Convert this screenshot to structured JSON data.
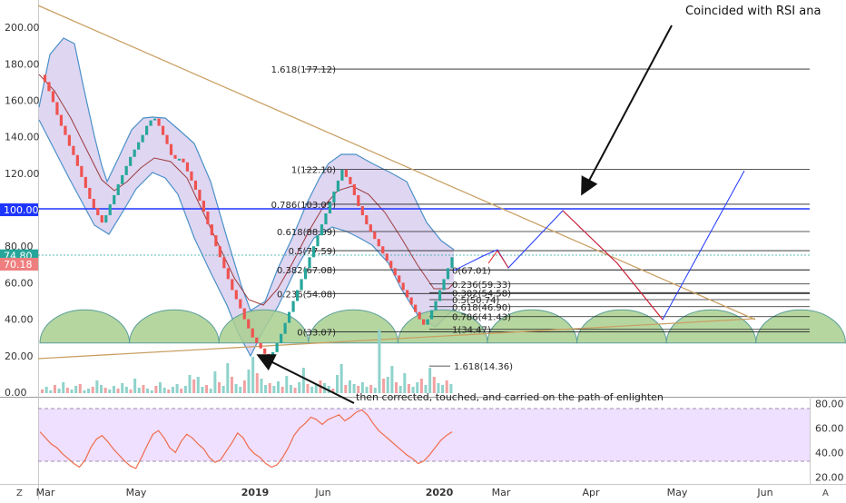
{
  "annotation_text": "Coincided with RSI ana",
  "bottom_note": "then corrected, touched, and carried on the path of enlighten",
  "bottom_bar": {
    "left_button": "Z",
    "right_button": "A"
  },
  "colors": {
    "candle_up": "#26a69a",
    "candle_down": "#ef5350",
    "bb_band": "#4a90c8",
    "bb_fill": "#d9cff0",
    "bb_mid": "#9c3c3c",
    "trendline": "#c9a064",
    "level_blue": "#1e35ff",
    "rsi_line": "#ef6c4c",
    "rsi_fill": "#efe0ff",
    "cycle_fill": "#a9cf8f",
    "cycle_stroke": "#5a9f9a",
    "path_blue": "#1e35ff",
    "path_red": "#e01f1f"
  },
  "chart_data": [
    {
      "type": "candlestick",
      "title": "",
      "y_axis": {
        "ticks": [
          "200.00",
          "180.00",
          "160.00",
          "140.00",
          "120.00",
          "100.00",
          "80.00",
          "60.00",
          "40.00",
          "20.00",
          "0.00"
        ],
        "ylim": [
          0,
          210
        ]
      },
      "x_axis": {
        "ticks": [
          "Mar",
          "May",
          "2019",
          "Jun",
          "2020",
          "Mar",
          "Apr",
          "May",
          "Jun"
        ]
      },
      "price_labels": [
        {
          "text": "100.00",
          "value": 100,
          "bg": "#1e35ff"
        },
        {
          "text": "74.80",
          "value": 74.8,
          "bg": "#26a69a"
        },
        {
          "text": "70.18",
          "value": 70.18,
          "bg": "#ef7f7f"
        }
      ],
      "fib_levels": [
        {
          "label": "1.618(177.12)",
          "value": 177.12
        },
        {
          "label": "1(122.10)",
          "value": 122.1
        },
        {
          "label": "0.786(103.05)",
          "value": 103.05
        },
        {
          "label": "0.618(88.09)",
          "value": 88.09
        },
        {
          "label": "0.5(77.59)",
          "value": 77.59
        },
        {
          "label": "0.382(67.08)",
          "value": 67.08
        },
        {
          "label": "0.236(54.08)",
          "value": 54.08
        },
        {
          "label": "0(33.07)",
          "value": 33.07
        },
        {
          "label": "0(67.01)",
          "value": 67.01
        },
        {
          "label": "0.236(59.33)",
          "value": 59.33
        },
        {
          "label": "0.382(54.58)",
          "value": 54.58
        },
        {
          "label": "0.5(50.74)",
          "value": 50.74
        },
        {
          "label": "0.618(46.90)",
          "value": 46.9
        },
        {
          "label": "0.786(41.43)",
          "value": 41.43
        },
        {
          "label": "1(34.47)",
          "value": 34.47
        },
        {
          "label": "1.618(14.36)",
          "value": 14.36
        }
      ],
      "price_series": [
        174,
        170,
        165,
        159,
        152,
        146,
        141,
        135,
        130,
        124,
        118,
        112,
        106,
        101,
        97,
        93,
        97,
        103,
        108,
        114,
        119,
        124,
        129,
        133,
        137,
        141,
        146,
        149,
        150,
        146,
        141,
        136,
        130,
        128,
        128,
        126,
        121,
        116,
        111,
        105,
        99,
        92,
        86,
        80,
        74,
        68,
        62,
        56,
        51,
        46,
        40,
        35,
        30,
        27,
        24,
        21,
        18,
        22,
        27,
        32,
        38,
        44,
        50,
        56,
        62,
        68,
        74,
        80,
        86,
        92,
        98,
        104,
        110,
        116,
        122,
        118,
        114,
        108,
        102,
        97,
        92,
        88,
        84,
        80,
        76,
        72,
        68,
        64,
        60,
        56,
        52,
        48,
        44,
        40,
        37,
        40,
        45,
        50,
        56,
        62,
        68,
        74
      ]
    },
    {
      "type": "line",
      "title": "",
      "y_axis": {
        "ticks": [
          "80.00",
          "60.00",
          "40.00",
          "20.00"
        ],
        "ylim": [
          15,
          85
        ]
      },
      "overbought": 70,
      "oversold": 30,
      "values": [
        57,
        52,
        47,
        44,
        39,
        35,
        31,
        28,
        34,
        44,
        51,
        54,
        49,
        43,
        38,
        33,
        29,
        27,
        36,
        46,
        55,
        58,
        52,
        44,
        40,
        49,
        55,
        52,
        47,
        43,
        36,
        32,
        34,
        41,
        48,
        56,
        52,
        44,
        39,
        36,
        31,
        28,
        30,
        36,
        44,
        54,
        60,
        64,
        69,
        67,
        63,
        67,
        69,
        71,
        66,
        69,
        73,
        75,
        71,
        64,
        58,
        54,
        50,
        46,
        42,
        38,
        35,
        31,
        33,
        38,
        44,
        50,
        54,
        57
      ]
    }
  ]
}
